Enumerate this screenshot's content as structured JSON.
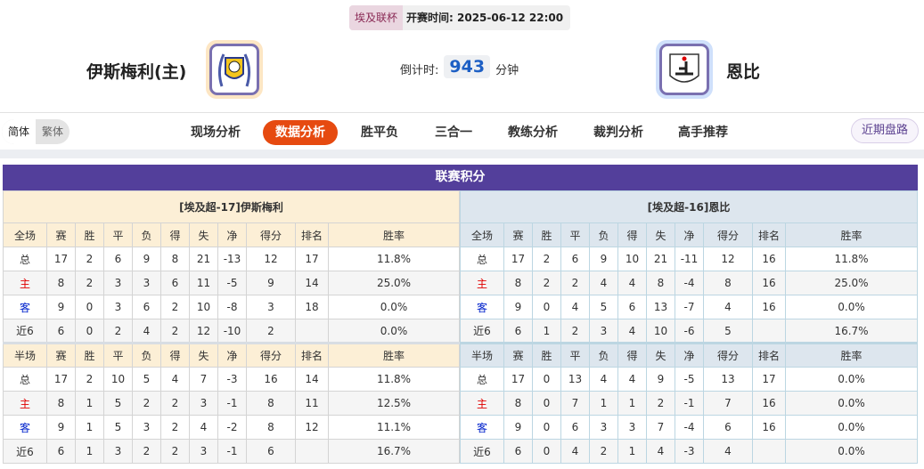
{
  "header": {
    "league": "埃及联杯",
    "kickoff": "开赛时间: 2025-06-12 22:00",
    "home": "伊斯梅利(主)",
    "away": "恩比",
    "countdown_label": "倒计时:",
    "countdown_value": "943",
    "countdown_unit": "分钟"
  },
  "nav": {
    "lang": [
      "简体",
      "繁体"
    ],
    "tabs": [
      "现场分析",
      "数据分析",
      "胜平负",
      "三合一",
      "教练分析",
      "裁判分析",
      "高手推荐"
    ],
    "active": "数据分析",
    "recent": "近期盘路"
  },
  "colors": {
    "accent": "#e64a10",
    "title_bar": "#533f9b",
    "home_red": "#e00000",
    "away_blue": "#0022cc"
  },
  "standings": {
    "title": "联赛积分",
    "columns_full": [
      "全场",
      "赛",
      "胜",
      "平",
      "负",
      "得",
      "失",
      "净",
      "得分",
      "排名",
      "胜率"
    ],
    "columns_half": [
      "半场",
      "赛",
      "胜",
      "平",
      "负",
      "得",
      "失",
      "净",
      "得分",
      "排名",
      "胜率"
    ],
    "home": {
      "label": "[埃及超-17]伊斯梅利",
      "full": [
        [
          "总",
          "17",
          "2",
          "6",
          "9",
          "8",
          "21",
          "-13",
          "12",
          "17",
          "11.8%"
        ],
        [
          "主",
          "8",
          "2",
          "3",
          "3",
          "6",
          "11",
          "-5",
          "9",
          "14",
          "25.0%"
        ],
        [
          "客",
          "9",
          "0",
          "3",
          "6",
          "2",
          "10",
          "-8",
          "3",
          "18",
          "0.0%"
        ],
        [
          "近6",
          "6",
          "0",
          "2",
          "4",
          "2",
          "12",
          "-10",
          "2",
          "",
          "0.0%"
        ]
      ],
      "half": [
        [
          "总",
          "17",
          "2",
          "10",
          "5",
          "4",
          "7",
          "-3",
          "16",
          "14",
          "11.8%"
        ],
        [
          "主",
          "8",
          "1",
          "5",
          "2",
          "2",
          "3",
          "-1",
          "8",
          "11",
          "12.5%"
        ],
        [
          "客",
          "9",
          "1",
          "5",
          "3",
          "2",
          "4",
          "-2",
          "8",
          "12",
          "11.1%"
        ],
        [
          "近6",
          "6",
          "1",
          "3",
          "2",
          "2",
          "3",
          "-1",
          "6",
          "",
          "16.7%"
        ]
      ]
    },
    "away": {
      "label": "[埃及超-16]恩比",
      "full": [
        [
          "总",
          "17",
          "2",
          "6",
          "9",
          "10",
          "21",
          "-11",
          "12",
          "16",
          "11.8%"
        ],
        [
          "主",
          "8",
          "2",
          "2",
          "4",
          "4",
          "8",
          "-4",
          "8",
          "16",
          "25.0%"
        ],
        [
          "客",
          "9",
          "0",
          "4",
          "5",
          "6",
          "13",
          "-7",
          "4",
          "16",
          "0.0%"
        ],
        [
          "近6",
          "6",
          "1",
          "2",
          "3",
          "4",
          "10",
          "-6",
          "5",
          "",
          "16.7%"
        ]
      ],
      "half": [
        [
          "总",
          "17",
          "0",
          "13",
          "4",
          "4",
          "9",
          "-5",
          "13",
          "17",
          "0.0%"
        ],
        [
          "主",
          "8",
          "0",
          "7",
          "1",
          "1",
          "2",
          "-1",
          "7",
          "16",
          "0.0%"
        ],
        [
          "客",
          "9",
          "0",
          "6",
          "3",
          "3",
          "7",
          "-4",
          "6",
          "16",
          "0.0%"
        ],
        [
          "近6",
          "6",
          "0",
          "4",
          "2",
          "1",
          "4",
          "-3",
          "4",
          "",
          "0.0%"
        ]
      ]
    }
  }
}
